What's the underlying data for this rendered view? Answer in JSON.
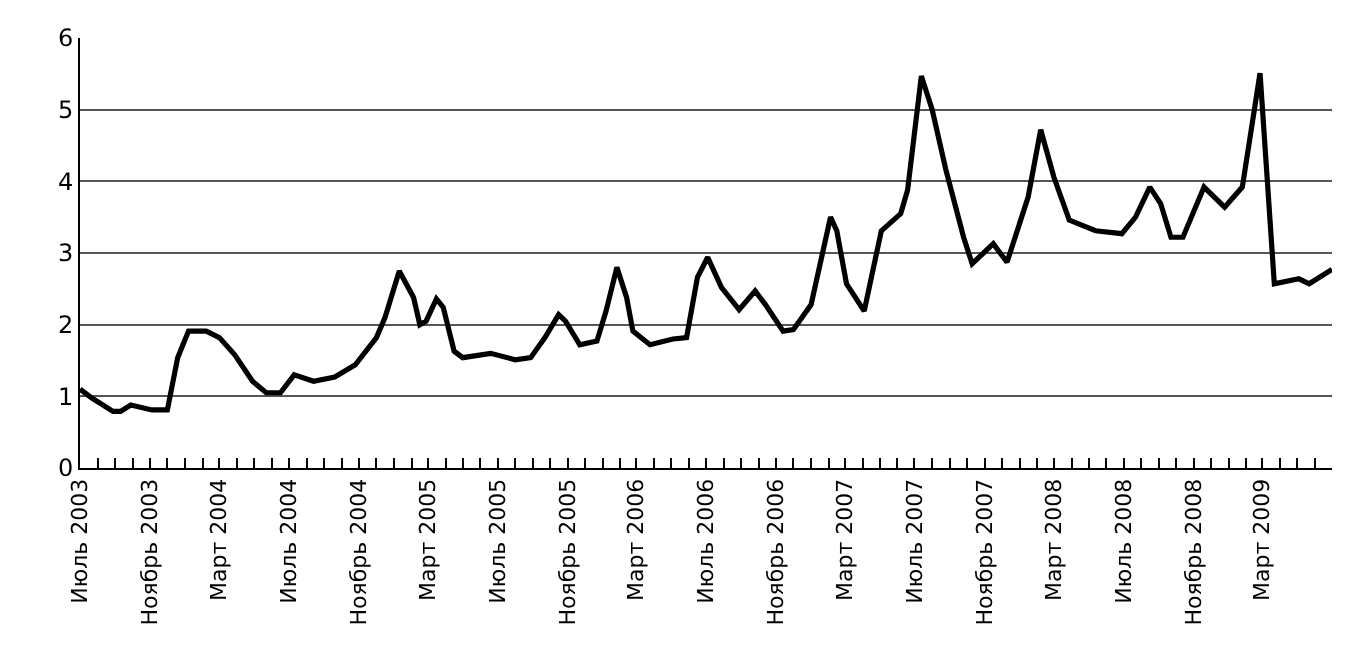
{
  "chart_data": {
    "type": "line",
    "x": [
      "2003-07-01",
      "2003-07-23",
      "2003-08-28",
      "2003-09-10",
      "2003-09-28",
      "2003-11-04",
      "2003-12-01",
      "2003-12-19",
      "2004-01-07",
      "2004-02-07",
      "2004-03-01",
      "2004-03-28",
      "2004-04-28",
      "2004-05-22",
      "2004-06-16",
      "2004-07-10",
      "2004-08-13",
      "2004-09-19",
      "2004-10-25",
      "2004-12-01",
      "2004-12-16",
      "2005-01-10",
      "2005-02-04",
      "2005-02-15",
      "2005-02-26",
      "2005-03-16",
      "2005-03-28",
      "2005-04-16",
      "2005-05-01",
      "2005-06-19",
      "2005-08-01",
      "2005-08-28",
      "2005-09-22",
      "2005-10-16",
      "2005-10-28",
      "2005-11-22",
      "2005-12-22",
      "2006-01-07",
      "2006-01-26",
      "2006-02-12",
      "2006-02-23",
      "2006-03-25",
      "2006-05-04",
      "2006-05-28",
      "2006-06-16",
      "2006-07-04",
      "2006-07-28",
      "2006-08-28",
      "2006-09-25",
      "2006-10-13",
      "2006-11-13",
      "2006-12-01",
      "2007-01-01",
      "2007-02-04",
      "2007-02-15",
      "2007-03-04",
      "2007-04-04",
      "2007-05-04",
      "2007-06-07",
      "2007-06-19",
      "2007-07-13",
      "2007-08-01",
      "2007-08-25",
      "2007-09-25",
      "2007-10-10",
      "2007-11-16",
      "2007-12-10",
      "2008-01-16",
      "2008-02-07",
      "2008-03-01",
      "2008-03-28",
      "2008-05-13",
      "2008-06-28",
      "2008-07-22",
      "2008-08-16",
      "2008-09-04",
      "2008-09-22",
      "2008-10-13",
      "2008-11-19",
      "2008-12-25",
      "2009-01-25",
      "2009-02-25",
      "2009-03-22",
      "2009-05-04",
      "2009-05-22",
      "2009-07-01"
    ],
    "series": [
      {
        "color": "#000000",
        "values": [
          1.1,
          0.97,
          0.79,
          0.79,
          0.88,
          0.81,
          0.81,
          1.54,
          1.91,
          1.91,
          1.82,
          1.58,
          1.21,
          1.05,
          1.05,
          1.3,
          1.21,
          1.27,
          1.44,
          1.82,
          2.1,
          2.75,
          2.38,
          2.0,
          2.05,
          2.36,
          2.24,
          1.63,
          1.54,
          1.6,
          1.51,
          1.54,
          1.82,
          2.14,
          2.05,
          1.72,
          1.77,
          2.19,
          2.8,
          2.38,
          1.91,
          1.72,
          1.8,
          1.82,
          2.66,
          2.94,
          2.52,
          2.21,
          2.47,
          2.28,
          1.91,
          1.93,
          2.28,
          3.5,
          3.31,
          2.57,
          2.19,
          3.31,
          3.55,
          3.88,
          5.47,
          5.0,
          4.16,
          3.22,
          2.85,
          3.13,
          2.87,
          3.78,
          4.72,
          4.06,
          3.46,
          3.31,
          3.27,
          3.5,
          3.92,
          3.69,
          3.22,
          3.22,
          3.92,
          3.64,
          3.92,
          5.51,
          2.57,
          2.64,
          2.57,
          2.77
        ]
      }
    ],
    "xlim": [
      "2003-07-01",
      "2009-07-01"
    ],
    "xticks": [
      {
        "value": "2003-07-01",
        "label": "Июль 2003"
      },
      {
        "value": "2003-08-01",
        "label": null
      },
      {
        "value": "2003-09-01",
        "label": null
      },
      {
        "value": "2003-10-01",
        "label": null
      },
      {
        "value": "2003-11-01",
        "label": "Ноябрь 2003"
      },
      {
        "value": "2003-12-01",
        "label": null
      },
      {
        "value": "2004-01-01",
        "label": null
      },
      {
        "value": "2004-02-01",
        "label": null
      },
      {
        "value": "2004-03-01",
        "label": "Март 2004"
      },
      {
        "value": "2004-04-01",
        "label": null
      },
      {
        "value": "2004-05-01",
        "label": null
      },
      {
        "value": "2004-06-01",
        "label": null
      },
      {
        "value": "2004-07-01",
        "label": "Июль 2004"
      },
      {
        "value": "2004-08-01",
        "label": null
      },
      {
        "value": "2004-09-01",
        "label": null
      },
      {
        "value": "2004-10-01",
        "label": null
      },
      {
        "value": "2004-11-01",
        "label": "Ноябрь 2004"
      },
      {
        "value": "2004-12-01",
        "label": null
      },
      {
        "value": "2005-01-01",
        "label": null
      },
      {
        "value": "2005-02-01",
        "label": null
      },
      {
        "value": "2005-03-01",
        "label": "Март 2005"
      },
      {
        "value": "2005-04-01",
        "label": null
      },
      {
        "value": "2005-05-01",
        "label": null
      },
      {
        "value": "2005-06-01",
        "label": null
      },
      {
        "value": "2005-07-01",
        "label": "Июль 2005"
      },
      {
        "value": "2005-08-01",
        "label": null
      },
      {
        "value": "2005-09-01",
        "label": null
      },
      {
        "value": "2005-10-01",
        "label": null
      },
      {
        "value": "2005-11-01",
        "label": "Ноябрь 2005"
      },
      {
        "value": "2005-12-01",
        "label": null
      },
      {
        "value": "2006-01-01",
        "label": null
      },
      {
        "value": "2006-02-01",
        "label": null
      },
      {
        "value": "2006-03-01",
        "label": "Март 2006"
      },
      {
        "value": "2006-04-01",
        "label": null
      },
      {
        "value": "2006-05-01",
        "label": null
      },
      {
        "value": "2006-06-01",
        "label": null
      },
      {
        "value": "2006-07-01",
        "label": "Июль 2006"
      },
      {
        "value": "2006-08-01",
        "label": null
      },
      {
        "value": "2006-09-01",
        "label": null
      },
      {
        "value": "2006-10-01",
        "label": null
      },
      {
        "value": "2006-11-01",
        "label": "Ноябрь 2006"
      },
      {
        "value": "2006-12-01",
        "label": null
      },
      {
        "value": "2007-01-01",
        "label": null
      },
      {
        "value": "2007-02-01",
        "label": null
      },
      {
        "value": "2007-03-01",
        "label": "Март 2007"
      },
      {
        "value": "2007-04-01",
        "label": null
      },
      {
        "value": "2007-05-01",
        "label": null
      },
      {
        "value": "2007-06-01",
        "label": null
      },
      {
        "value": "2007-07-01",
        "label": "Июль 2007"
      },
      {
        "value": "2007-08-01",
        "label": null
      },
      {
        "value": "2007-09-01",
        "label": null
      },
      {
        "value": "2007-10-01",
        "label": null
      },
      {
        "value": "2007-11-01",
        "label": "Ноябрь 2007"
      },
      {
        "value": "2007-12-01",
        "label": null
      },
      {
        "value": "2008-01-01",
        "label": null
      },
      {
        "value": "2008-02-01",
        "label": null
      },
      {
        "value": "2008-03-01",
        "label": "Март 2008"
      },
      {
        "value": "2008-04-01",
        "label": null
      },
      {
        "value": "2008-05-01",
        "label": null
      },
      {
        "value": "2008-06-01",
        "label": null
      },
      {
        "value": "2008-07-01",
        "label": "Июль 2008"
      },
      {
        "value": "2008-08-01",
        "label": null
      },
      {
        "value": "2008-09-01",
        "label": null
      },
      {
        "value": "2008-10-01",
        "label": null
      },
      {
        "value": "2008-11-01",
        "label": "Ноябрь 2008"
      },
      {
        "value": "2008-12-01",
        "label": null
      },
      {
        "value": "2009-01-01",
        "label": null
      },
      {
        "value": "2009-02-01",
        "label": null
      },
      {
        "value": "2009-03-01",
        "label": "Март 2009"
      },
      {
        "value": "2009-04-01",
        "label": null
      },
      {
        "value": "2009-05-01",
        "label": null
      },
      {
        "value": "2009-06-01",
        "label": null
      }
    ],
    "ylim": [
      0,
      6
    ],
    "yticks": [
      0,
      1,
      2,
      3,
      4,
      5,
      6
    ],
    "grid": "y",
    "marker": "none",
    "line_style": "solid"
  }
}
